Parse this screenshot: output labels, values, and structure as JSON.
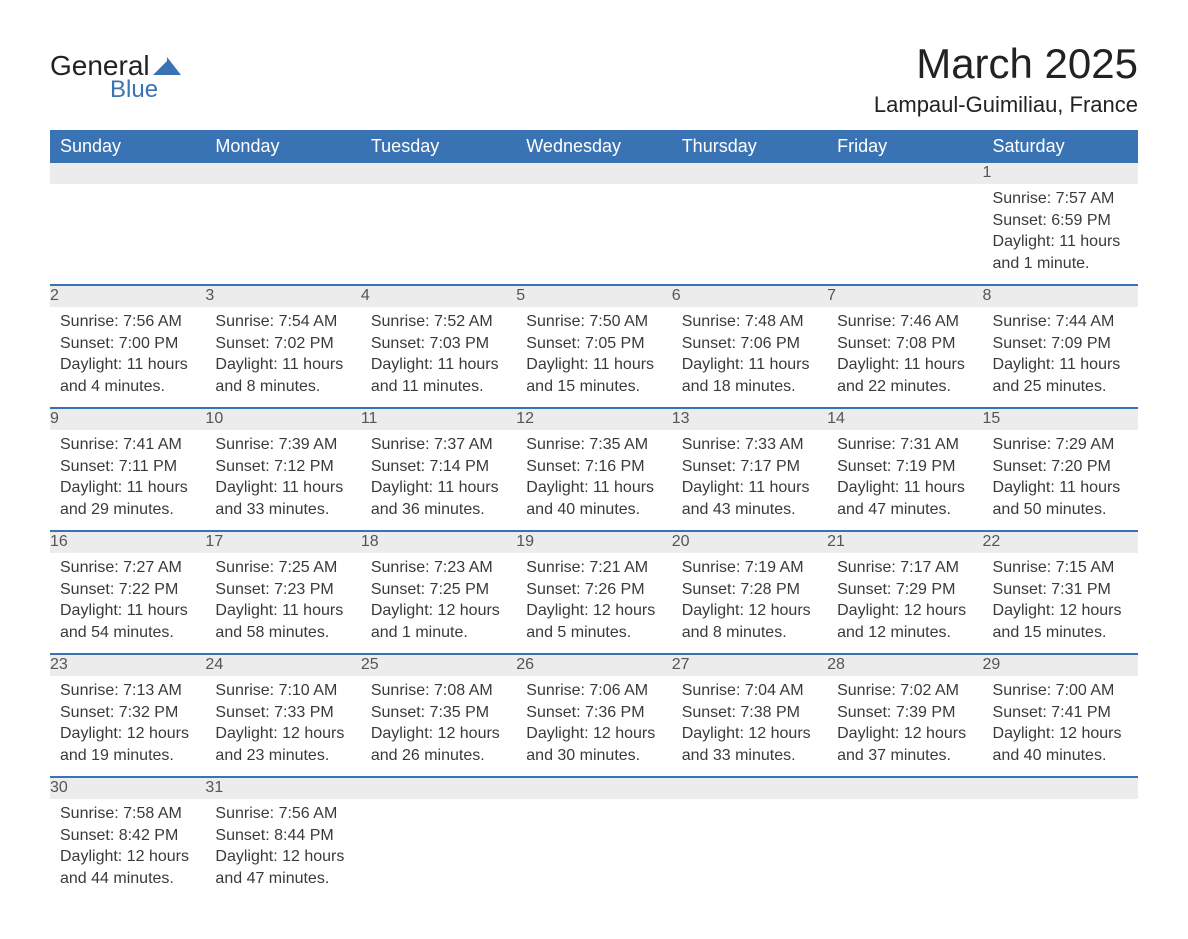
{
  "logo": {
    "general": "General",
    "blue": "Blue"
  },
  "title": "March 2025",
  "location": "Lampaul-Guimiliau, France",
  "colors": {
    "header_bg": "#3a73b4",
    "header_text": "#ffffff",
    "daynum_bg": "#ececec",
    "row_divider": "#3a73b4",
    "text": "#333333"
  },
  "weekdays": [
    "Sunday",
    "Monday",
    "Tuesday",
    "Wednesday",
    "Thursday",
    "Friday",
    "Saturday"
  ],
  "weeks": [
    [
      null,
      null,
      null,
      null,
      null,
      null,
      {
        "n": "1",
        "sr": "Sunrise: 7:57 AM",
        "ss": "Sunset: 6:59 PM",
        "d1": "Daylight: 11 hours",
        "d2": "and 1 minute."
      }
    ],
    [
      {
        "n": "2",
        "sr": "Sunrise: 7:56 AM",
        "ss": "Sunset: 7:00 PM",
        "d1": "Daylight: 11 hours",
        "d2": "and 4 minutes."
      },
      {
        "n": "3",
        "sr": "Sunrise: 7:54 AM",
        "ss": "Sunset: 7:02 PM",
        "d1": "Daylight: 11 hours",
        "d2": "and 8 minutes."
      },
      {
        "n": "4",
        "sr": "Sunrise: 7:52 AM",
        "ss": "Sunset: 7:03 PM",
        "d1": "Daylight: 11 hours",
        "d2": "and 11 minutes."
      },
      {
        "n": "5",
        "sr": "Sunrise: 7:50 AM",
        "ss": "Sunset: 7:05 PM",
        "d1": "Daylight: 11 hours",
        "d2": "and 15 minutes."
      },
      {
        "n": "6",
        "sr": "Sunrise: 7:48 AM",
        "ss": "Sunset: 7:06 PM",
        "d1": "Daylight: 11 hours",
        "d2": "and 18 minutes."
      },
      {
        "n": "7",
        "sr": "Sunrise: 7:46 AM",
        "ss": "Sunset: 7:08 PM",
        "d1": "Daylight: 11 hours",
        "d2": "and 22 minutes."
      },
      {
        "n": "8",
        "sr": "Sunrise: 7:44 AM",
        "ss": "Sunset: 7:09 PM",
        "d1": "Daylight: 11 hours",
        "d2": "and 25 minutes."
      }
    ],
    [
      {
        "n": "9",
        "sr": "Sunrise: 7:41 AM",
        "ss": "Sunset: 7:11 PM",
        "d1": "Daylight: 11 hours",
        "d2": "and 29 minutes."
      },
      {
        "n": "10",
        "sr": "Sunrise: 7:39 AM",
        "ss": "Sunset: 7:12 PM",
        "d1": "Daylight: 11 hours",
        "d2": "and 33 minutes."
      },
      {
        "n": "11",
        "sr": "Sunrise: 7:37 AM",
        "ss": "Sunset: 7:14 PM",
        "d1": "Daylight: 11 hours",
        "d2": "and 36 minutes."
      },
      {
        "n": "12",
        "sr": "Sunrise: 7:35 AM",
        "ss": "Sunset: 7:16 PM",
        "d1": "Daylight: 11 hours",
        "d2": "and 40 minutes."
      },
      {
        "n": "13",
        "sr": "Sunrise: 7:33 AM",
        "ss": "Sunset: 7:17 PM",
        "d1": "Daylight: 11 hours",
        "d2": "and 43 minutes."
      },
      {
        "n": "14",
        "sr": "Sunrise: 7:31 AM",
        "ss": "Sunset: 7:19 PM",
        "d1": "Daylight: 11 hours",
        "d2": "and 47 minutes."
      },
      {
        "n": "15",
        "sr": "Sunrise: 7:29 AM",
        "ss": "Sunset: 7:20 PM",
        "d1": "Daylight: 11 hours",
        "d2": "and 50 minutes."
      }
    ],
    [
      {
        "n": "16",
        "sr": "Sunrise: 7:27 AM",
        "ss": "Sunset: 7:22 PM",
        "d1": "Daylight: 11 hours",
        "d2": "and 54 minutes."
      },
      {
        "n": "17",
        "sr": "Sunrise: 7:25 AM",
        "ss": "Sunset: 7:23 PM",
        "d1": "Daylight: 11 hours",
        "d2": "and 58 minutes."
      },
      {
        "n": "18",
        "sr": "Sunrise: 7:23 AM",
        "ss": "Sunset: 7:25 PM",
        "d1": "Daylight: 12 hours",
        "d2": "and 1 minute."
      },
      {
        "n": "19",
        "sr": "Sunrise: 7:21 AM",
        "ss": "Sunset: 7:26 PM",
        "d1": "Daylight: 12 hours",
        "d2": "and 5 minutes."
      },
      {
        "n": "20",
        "sr": "Sunrise: 7:19 AM",
        "ss": "Sunset: 7:28 PM",
        "d1": "Daylight: 12 hours",
        "d2": "and 8 minutes."
      },
      {
        "n": "21",
        "sr": "Sunrise: 7:17 AM",
        "ss": "Sunset: 7:29 PM",
        "d1": "Daylight: 12 hours",
        "d2": "and 12 minutes."
      },
      {
        "n": "22",
        "sr": "Sunrise: 7:15 AM",
        "ss": "Sunset: 7:31 PM",
        "d1": "Daylight: 12 hours",
        "d2": "and 15 minutes."
      }
    ],
    [
      {
        "n": "23",
        "sr": "Sunrise: 7:13 AM",
        "ss": "Sunset: 7:32 PM",
        "d1": "Daylight: 12 hours",
        "d2": "and 19 minutes."
      },
      {
        "n": "24",
        "sr": "Sunrise: 7:10 AM",
        "ss": "Sunset: 7:33 PM",
        "d1": "Daylight: 12 hours",
        "d2": "and 23 minutes."
      },
      {
        "n": "25",
        "sr": "Sunrise: 7:08 AM",
        "ss": "Sunset: 7:35 PM",
        "d1": "Daylight: 12 hours",
        "d2": "and 26 minutes."
      },
      {
        "n": "26",
        "sr": "Sunrise: 7:06 AM",
        "ss": "Sunset: 7:36 PM",
        "d1": "Daylight: 12 hours",
        "d2": "and 30 minutes."
      },
      {
        "n": "27",
        "sr": "Sunrise: 7:04 AM",
        "ss": "Sunset: 7:38 PM",
        "d1": "Daylight: 12 hours",
        "d2": "and 33 minutes."
      },
      {
        "n": "28",
        "sr": "Sunrise: 7:02 AM",
        "ss": "Sunset: 7:39 PM",
        "d1": "Daylight: 12 hours",
        "d2": "and 37 minutes."
      },
      {
        "n": "29",
        "sr": "Sunrise: 7:00 AM",
        "ss": "Sunset: 7:41 PM",
        "d1": "Daylight: 12 hours",
        "d2": "and 40 minutes."
      }
    ],
    [
      {
        "n": "30",
        "sr": "Sunrise: 7:58 AM",
        "ss": "Sunset: 8:42 PM",
        "d1": "Daylight: 12 hours",
        "d2": "and 44 minutes."
      },
      {
        "n": "31",
        "sr": "Sunrise: 7:56 AM",
        "ss": "Sunset: 8:44 PM",
        "d1": "Daylight: 12 hours",
        "d2": "and 47 minutes."
      },
      null,
      null,
      null,
      null,
      null
    ]
  ]
}
